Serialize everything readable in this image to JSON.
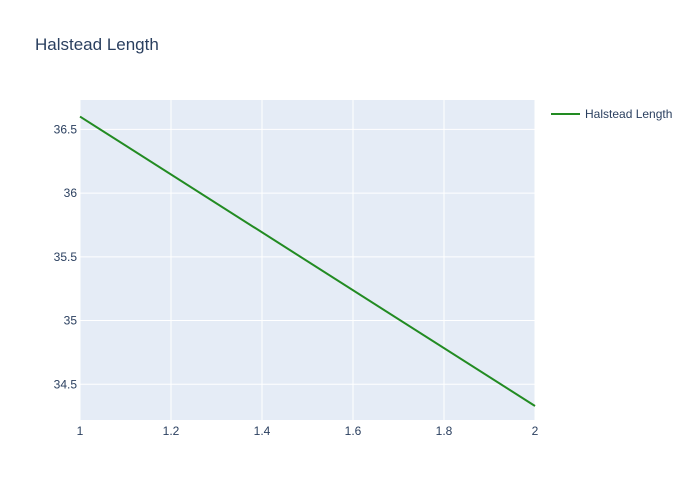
{
  "chart_data": {
    "type": "line",
    "title": "Halstead Length",
    "xlabel": "",
    "ylabel": "",
    "xlim": [
      1,
      2
    ],
    "ylim": [
      34.22,
      36.73
    ],
    "x_ticks": [
      1,
      1.2,
      1.4,
      1.6,
      1.8,
      2
    ],
    "x_tick_labels": [
      "1",
      "1.2",
      "1.4",
      "1.6",
      "1.8",
      "2"
    ],
    "y_ticks": [
      34.5,
      35,
      35.5,
      36,
      36.5
    ],
    "y_tick_labels": [
      "34.5",
      "35",
      "35.5",
      "36",
      "36.5"
    ],
    "grid": true,
    "legend_position": "top-right",
    "series": [
      {
        "name": "Halstead Length",
        "color": "#228b22",
        "x": [
          1,
          2
        ],
        "y": [
          36.6,
          34.33
        ]
      }
    ]
  },
  "colors": {
    "plot_background": "#e5ecf6",
    "grid": "#ffffff",
    "text": "#2a3f5f"
  }
}
